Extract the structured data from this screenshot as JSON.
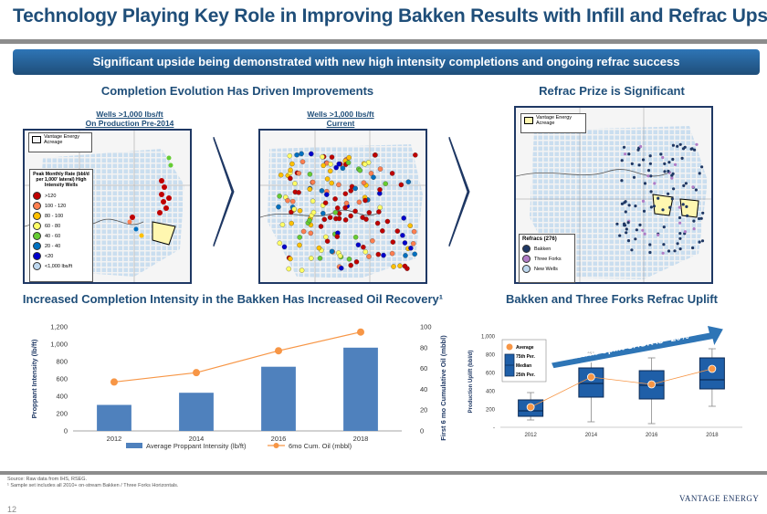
{
  "title": "Technology Playing Key Role in Improving Bakken Results with Infill and Refrac Upside",
  "banner": "Significant upside being demonstrated with new high intensity completions and ongoing refrac success",
  "left_top": {
    "heading": "Completion Evolution Has Driven Improvements",
    "map1": {
      "title_line1": "Wells >1,000 lbs/ft",
      "title_line2": "On Production Pre-2014"
    },
    "map2": {
      "title_line1": "Wells >1,000 lbs/ft",
      "title_line2": "Current"
    },
    "acreage_legend": "Vantage Energy Acreage",
    "rate_legend": {
      "title": "Peak Monthly Rate (bbl/d per 1,000' lateral) High Intensity Wells",
      "items": [
        {
          "label": ">120",
          "color": "#c00000"
        },
        {
          "label": "100 - 120",
          "color": "#ff7f50"
        },
        {
          "label": "80 - 100",
          "color": "#ffc000"
        },
        {
          "label": "60 - 80",
          "color": "#ffff66"
        },
        {
          "label": "40 - 60",
          "color": "#66cc33"
        },
        {
          "label": "20 - 40",
          "color": "#0070c0"
        },
        {
          "label": "<20",
          "color": "#0000cc"
        },
        {
          "label": "<1,000 lbs/ft",
          "color": "#bdd7ee"
        }
      ]
    }
  },
  "right_top": {
    "heading": "Refrac Prize is Significant",
    "acreage_legend": "Vantage Energy Acreage",
    "refrac_legend": {
      "title": "Refracs (276)",
      "items": [
        {
          "label": "Bakken",
          "color": "#1f3864"
        },
        {
          "label": "Three Forks",
          "color": "#b07cc6"
        },
        {
          "label": "New Wells",
          "color": "#bdd7ee"
        }
      ]
    }
  },
  "left_bottom": {
    "heading": "Increased Completion Intensity in the Bakken Has Increased Oil Recovery¹",
    "chart_data": {
      "type": "bar",
      "categories": [
        "2012",
        "2014",
        "2016",
        "2018"
      ],
      "series": [
        {
          "name": "Average Proppant Intensity (lb/ft)",
          "type": "bar",
          "axis": "left",
          "values": [
            300,
            440,
            740,
            960
          ]
        },
        {
          "name": "6mo Cum. Oil (mbbl)",
          "type": "line",
          "axis": "right",
          "values": [
            47,
            56,
            77,
            95
          ]
        }
      ],
      "ylabel": "Proppant Intensity (lb/ft)",
      "y2label": "First 6 mo Cumulative Oil (mbbl)",
      "ylim": [
        0,
        1200
      ],
      "y2lim": [
        0,
        100
      ],
      "yticks": [
        "0",
        "200",
        "400",
        "600",
        "800",
        "1,000",
        "1,200"
      ],
      "y2ticks": [
        "0",
        "20",
        "40",
        "60",
        "80",
        "100"
      ],
      "colors": {
        "bar": "#4f81bd",
        "line": "#f79646"
      },
      "legend": "bottom"
    }
  },
  "right_bottom": {
    "heading": "Bakken and Three Forks Refrac Uplift",
    "arrow_text": "Refrac Uplift CAGR is ~20%",
    "legend": {
      "average": "Average",
      "p75": "75th Per.",
      "median": "Median",
      "p25": "25th Per."
    },
    "chart_data": {
      "type": "box",
      "categories": [
        "2012",
        "2014",
        "2016",
        "2018"
      ],
      "ylabel": "Production Uplift (bbl/d)",
      "yticks": [
        "-",
        "200",
        "400",
        "600",
        "800",
        "1,000"
      ],
      "ylim": [
        0,
        1000
      ],
      "boxes": [
        {
          "min": 80,
          "p25": 120,
          "median": 180,
          "p75": 300,
          "max": 380,
          "average": 220
        },
        {
          "min": 60,
          "p25": 330,
          "median": 480,
          "p75": 650,
          "max": 820,
          "average": 550
        },
        {
          "min": 40,
          "p25": 310,
          "median": 460,
          "p75": 620,
          "max": 760,
          "average": 470
        },
        {
          "min": 230,
          "p25": 420,
          "median": 520,
          "p75": 760,
          "max": 860,
          "average": 640
        }
      ],
      "colors": {
        "box": "#1f5fa8",
        "average": "#f79646"
      }
    }
  },
  "footer": {
    "source": "Source: Raw data from IHS, RSEG.",
    "note": "¹ Sample set includes all 2010+ on-stream Bakken / Three Forks Horizontals.",
    "page": "12",
    "brand": "VANTAGE ENERGY"
  }
}
